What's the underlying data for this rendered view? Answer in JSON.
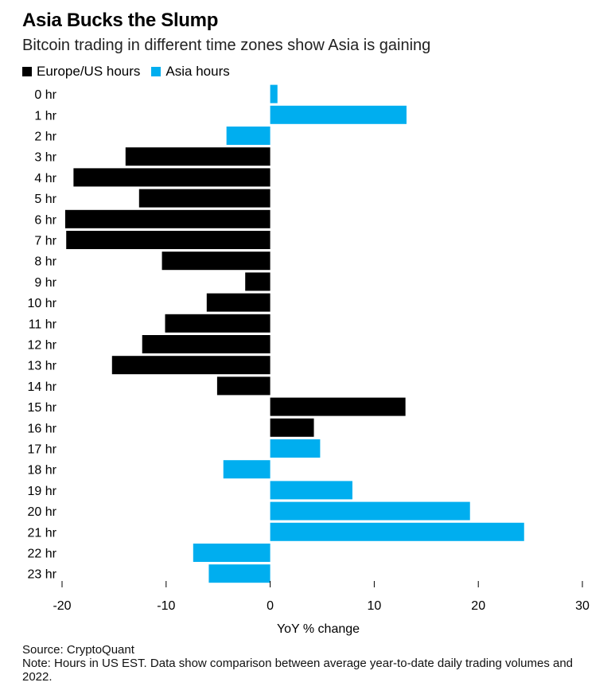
{
  "chart_data": {
    "type": "bar",
    "orientation": "horizontal",
    "title": "Asia Bucks the Slump",
    "subtitle": "Bitcoin trading in different time zones show Asia is gaining",
    "xlabel": "YoY % change",
    "ylabel": "",
    "xlim": [
      -20,
      30
    ],
    "xticks": [
      "-20",
      "-10",
      "0",
      "10",
      "20",
      "30"
    ],
    "legend_position": "top-left",
    "legend": [
      {
        "name": "Europe/US hours",
        "color": "#000000"
      },
      {
        "name": "Asia hours",
        "color": "#00aeef"
      }
    ],
    "categories": [
      "0 hr",
      "1 hr",
      "2 hr",
      "3 hr",
      "4 hr",
      "5 hr",
      "6 hr",
      "7 hr",
      "8 hr",
      "9 hr",
      "10 hr",
      "11 hr",
      "12 hr",
      "13 hr",
      "14 hr",
      "15 hr",
      "16 hr",
      "17 hr",
      "18 hr",
      "19 hr",
      "20 hr",
      "21 hr",
      "22 hr",
      "23 hr"
    ],
    "values": [
      0.7,
      13.1,
      -4.2,
      -13.9,
      -18.9,
      -12.6,
      -19.7,
      -19.6,
      -10.4,
      -2.4,
      -6.1,
      -10.1,
      -12.3,
      -15.2,
      -5.1,
      13.0,
      4.2,
      4.8,
      -4.5,
      7.9,
      19.2,
      24.4,
      -7.4,
      -5.9
    ],
    "groups": [
      "Asia hours",
      "Asia hours",
      "Asia hours",
      "Europe/US hours",
      "Europe/US hours",
      "Europe/US hours",
      "Europe/US hours",
      "Europe/US hours",
      "Europe/US hours",
      "Europe/US hours",
      "Europe/US hours",
      "Europe/US hours",
      "Europe/US hours",
      "Europe/US hours",
      "Europe/US hours",
      "Europe/US hours",
      "Europe/US hours",
      "Asia hours",
      "Asia hours",
      "Asia hours",
      "Asia hours",
      "Asia hours",
      "Asia hours",
      "Asia hours"
    ],
    "grid": false
  },
  "footer": {
    "source": "Source: CryptoQuant",
    "note": "Note: Hours in US EST. Data show comparison between average year-to-date daily trading volumes and 2022."
  }
}
